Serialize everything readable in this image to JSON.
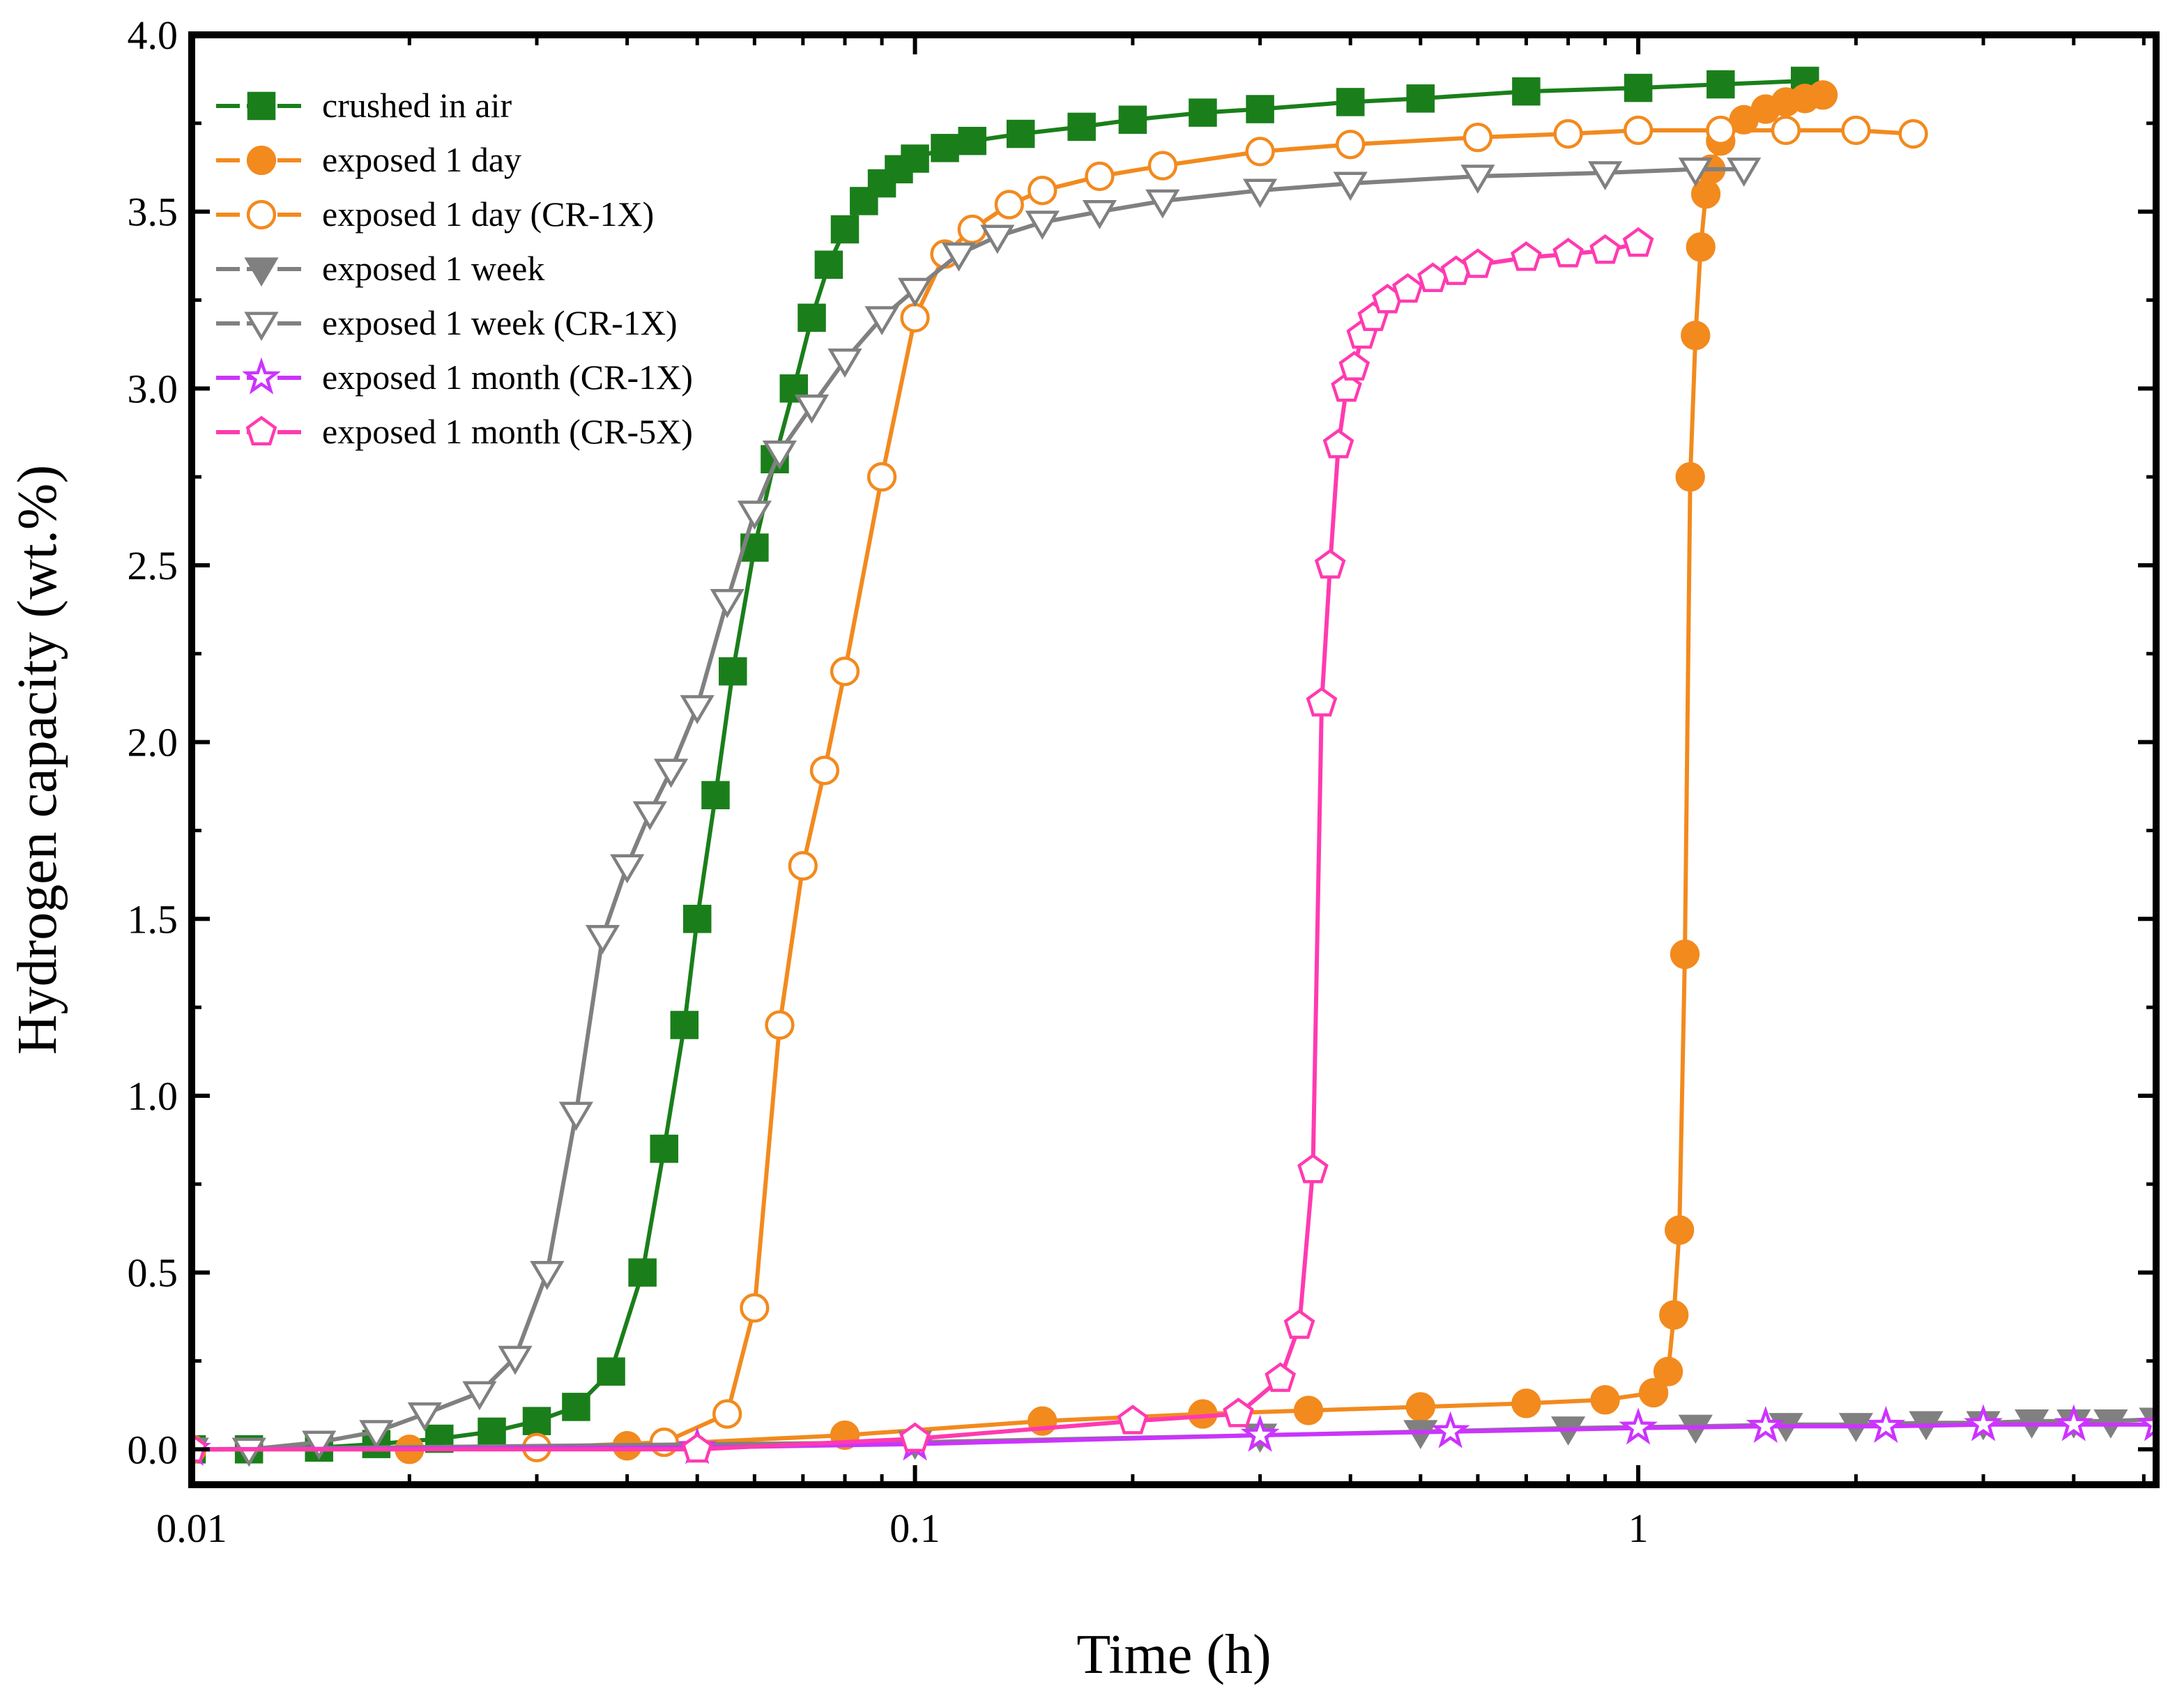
{
  "chart_data": {
    "type": "line",
    "title": "",
    "xlabel": "Time (h)",
    "ylabel": "Hydrogen capacity (wt.%)",
    "xscale": "log",
    "xlim": [
      0.01,
      5.2
    ],
    "ylim": [
      -0.1,
      4.0
    ],
    "x_ticks": [
      {
        "value": 0.01,
        "label": "0.01"
      },
      {
        "value": 0.1,
        "label": "0.1"
      },
      {
        "value": 1,
        "label": "1"
      }
    ],
    "y_ticks": [
      {
        "value": 0.0,
        "label": "0.0"
      },
      {
        "value": 0.5,
        "label": "0.5"
      },
      {
        "value": 1.0,
        "label": "1.0"
      },
      {
        "value": 1.5,
        "label": "1.5"
      },
      {
        "value": 2.0,
        "label": "2.0"
      },
      {
        "value": 2.5,
        "label": "2.5"
      },
      {
        "value": 3.0,
        "label": "3.0"
      },
      {
        "value": 3.5,
        "label": "3.5"
      },
      {
        "value": 4.0,
        "label": "4.0"
      }
    ],
    "grid": false,
    "legend_position": "top-left",
    "series": [
      {
        "name": "crushed in air",
        "color": "#1a7f1a",
        "marker": "square",
        "filled": true,
        "x": [
          0.01,
          0.012,
          0.015,
          0.018,
          0.022,
          0.026,
          0.03,
          0.034,
          0.038,
          0.042,
          0.045,
          0.048,
          0.05,
          0.053,
          0.056,
          0.06,
          0.064,
          0.068,
          0.072,
          0.076,
          0.08,
          0.085,
          0.09,
          0.095,
          0.1,
          0.11,
          0.12,
          0.14,
          0.17,
          0.2,
          0.25,
          0.3,
          0.4,
          0.5,
          0.7,
          1.0,
          1.3,
          1.7
        ],
        "y": [
          0.0,
          0.0,
          0.005,
          0.015,
          0.03,
          0.05,
          0.08,
          0.12,
          0.22,
          0.5,
          0.85,
          1.2,
          1.5,
          1.85,
          2.2,
          2.55,
          2.8,
          3.0,
          3.2,
          3.35,
          3.45,
          3.53,
          3.58,
          3.62,
          3.65,
          3.68,
          3.7,
          3.72,
          3.74,
          3.76,
          3.78,
          3.79,
          3.81,
          3.82,
          3.84,
          3.85,
          3.86,
          3.87
        ]
      },
      {
        "name": "exposed 1 day",
        "color": "#f28a1e",
        "marker": "circle",
        "filled": true,
        "x": [
          0.01,
          0.02,
          0.04,
          0.08,
          0.15,
          0.25,
          0.35,
          0.5,
          0.7,
          0.9,
          1.05,
          1.1,
          1.12,
          1.14,
          1.16,
          1.18,
          1.2,
          1.22,
          1.24,
          1.26,
          1.3,
          1.4,
          1.5,
          1.6,
          1.7,
          1.8
        ],
        "y": [
          0.0,
          0.0,
          0.01,
          0.04,
          0.08,
          0.1,
          0.11,
          0.12,
          0.13,
          0.14,
          0.16,
          0.22,
          0.38,
          0.62,
          1.4,
          2.75,
          3.15,
          3.4,
          3.55,
          3.62,
          3.7,
          3.76,
          3.79,
          3.81,
          3.82,
          3.83
        ]
      },
      {
        "name": "exposed 1 day (CR-1X)",
        "color": "#f28a1e",
        "marker": "circle",
        "filled": false,
        "x": [
          0.01,
          0.03,
          0.045,
          0.055,
          0.06,
          0.065,
          0.07,
          0.075,
          0.08,
          0.09,
          0.1,
          0.11,
          0.12,
          0.135,
          0.15,
          0.18,
          0.22,
          0.3,
          0.4,
          0.6,
          0.8,
          1.0,
          1.3,
          1.6,
          2.0,
          2.4
        ],
        "y": [
          0.0,
          0.005,
          0.02,
          0.1,
          0.4,
          1.2,
          1.65,
          1.92,
          2.2,
          2.75,
          3.2,
          3.38,
          3.45,
          3.52,
          3.56,
          3.6,
          3.63,
          3.67,
          3.69,
          3.71,
          3.72,
          3.73,
          3.73,
          3.73,
          3.73,
          3.72
        ]
      },
      {
        "name": "exposed 1 week",
        "color": "#808080",
        "marker": "triangle-down",
        "filled": true,
        "x": [
          0.01,
          0.1,
          0.3,
          0.5,
          0.8,
          1.2,
          1.6,
          2.0,
          2.5,
          3.0,
          3.5,
          4.0,
          4.5,
          5.2
        ],
        "y": [
          0.0,
          0.02,
          0.04,
          0.05,
          0.06,
          0.065,
          0.07,
          0.07,
          0.075,
          0.075,
          0.08,
          0.08,
          0.08,
          0.085
        ]
      },
      {
        "name": "exposed 1 week (CR-1X)",
        "color": "#808080",
        "marker": "triangle-down",
        "filled": false,
        "x": [
          0.01,
          0.012,
          0.015,
          0.018,
          0.021,
          0.025,
          0.028,
          0.031,
          0.034,
          0.037,
          0.04,
          0.043,
          0.046,
          0.05,
          0.055,
          0.06,
          0.065,
          0.072,
          0.08,
          0.09,
          0.1,
          0.115,
          0.13,
          0.15,
          0.18,
          0.22,
          0.3,
          0.4,
          0.6,
          0.9,
          1.2,
          1.4
        ],
        "y": [
          0.0,
          0.0,
          0.02,
          0.05,
          0.1,
          0.16,
          0.26,
          0.5,
          0.95,
          1.45,
          1.65,
          1.8,
          1.92,
          2.1,
          2.4,
          2.65,
          2.82,
          2.95,
          3.08,
          3.2,
          3.28,
          3.38,
          3.43,
          3.47,
          3.5,
          3.53,
          3.56,
          3.58,
          3.6,
          3.61,
          3.62,
          3.62
        ]
      },
      {
        "name": "exposed 1 month (CR-1X)",
        "color": "#cc33ff",
        "marker": "star",
        "filled": false,
        "x": [
          0.01,
          0.05,
          0.1,
          0.3,
          0.55,
          1.0,
          1.5,
          2.2,
          3.0,
          4.0,
          5.2
        ],
        "y": [
          0.0,
          0.005,
          0.015,
          0.04,
          0.05,
          0.06,
          0.065,
          0.065,
          0.07,
          0.07,
          0.07
        ]
      },
      {
        "name": "exposed 1 month (CR-5X)",
        "color": "#ff3ab0",
        "marker": "pentagon",
        "filled": false,
        "x": [
          0.01,
          0.05,
          0.1,
          0.2,
          0.28,
          0.32,
          0.34,
          0.355,
          0.365,
          0.375,
          0.385,
          0.395,
          0.405,
          0.415,
          0.43,
          0.45,
          0.48,
          0.52,
          0.56,
          0.6,
          0.7,
          0.8,
          0.9,
          1.0
        ],
        "y": [
          0.0,
          0.0,
          0.03,
          0.08,
          0.1,
          0.2,
          0.35,
          0.79,
          2.11,
          2.5,
          2.84,
          3.0,
          3.06,
          3.15,
          3.2,
          3.25,
          3.28,
          3.31,
          3.33,
          3.35,
          3.37,
          3.38,
          3.39,
          3.41
        ]
      }
    ]
  }
}
